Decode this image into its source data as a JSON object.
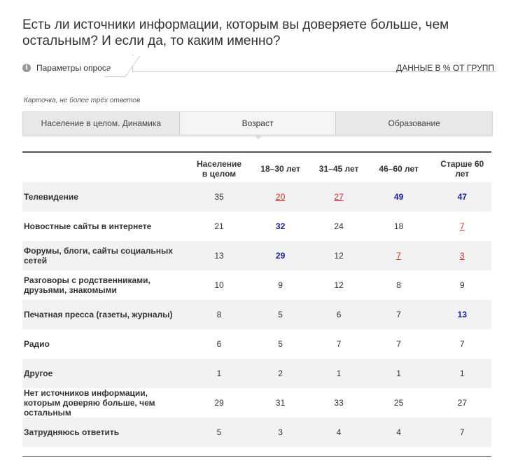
{
  "title": "Есть ли источники информации, которым вы доверяете больше, чем остальным? И если да, то каким именно?",
  "params": {
    "label": "Параметры опроса",
    "data_note": "ДАННЫЕ В % ОТ ГРУПП",
    "icon": "info-icon"
  },
  "card_note": "Карточка, не более трёх ответов",
  "tabs": [
    {
      "label": "Население в целом. Динамика",
      "active": false
    },
    {
      "label": "Возраст",
      "active": true
    },
    {
      "label": "Образование",
      "active": false
    }
  ],
  "table": {
    "headers": [
      "",
      "Население в целом",
      "18–30 лет",
      "31–45 лет",
      "46–60 лет",
      "Старше 60 лет"
    ],
    "rows": [
      {
        "label": "Телевидение",
        "values": [
          "35",
          "20",
          "27",
          "49",
          "47"
        ],
        "styles": [
          "",
          "lo",
          "lo",
          "hi",
          "hi"
        ]
      },
      {
        "label": "Новостные сайты в интернете",
        "values": [
          "21",
          "32",
          "24",
          "18",
          "7"
        ],
        "styles": [
          "",
          "hi",
          "",
          "",
          "lo"
        ]
      },
      {
        "label": "Форумы, блоги, сайты социальных сетей",
        "values": [
          "13",
          "29",
          "12",
          "7",
          "3"
        ],
        "styles": [
          "",
          "hi",
          "",
          "lo",
          "lo"
        ]
      },
      {
        "label": "Разговоры с родственниками, друзьями, знакомыми",
        "values": [
          "10",
          "9",
          "12",
          "8",
          "9"
        ],
        "styles": [
          "",
          "",
          "",
          "",
          ""
        ]
      },
      {
        "label": "Печатная пресса (газеты, журналы)",
        "values": [
          "8",
          "5",
          "6",
          "7",
          "13"
        ],
        "styles": [
          "",
          "",
          "",
          "",
          "hi"
        ]
      },
      {
        "label": "Радио",
        "values": [
          "6",
          "5",
          "7",
          "7",
          "7"
        ],
        "styles": [
          "",
          "",
          "",
          "",
          ""
        ]
      },
      {
        "label": "Другое",
        "values": [
          "1",
          "2",
          "1",
          "1",
          "1"
        ],
        "styles": [
          "",
          "",
          "",
          "",
          ""
        ]
      },
      {
        "label": "Нет источников информации, которым доверяю больше, чем остальным",
        "values": [
          "29",
          "31",
          "33",
          "25",
          "27"
        ],
        "styles": [
          "",
          "",
          "",
          "",
          ""
        ]
      },
      {
        "label": "Затрудняюсь ответить",
        "values": [
          "5",
          "3",
          "4",
          "4",
          "7"
        ],
        "styles": [
          "",
          "",
          "",
          "",
          ""
        ]
      }
    ]
  },
  "colors": {
    "highlight_high": "#1a1aa8",
    "highlight_low": "#d62b2b",
    "row_shade": "#f2f2f2"
  }
}
